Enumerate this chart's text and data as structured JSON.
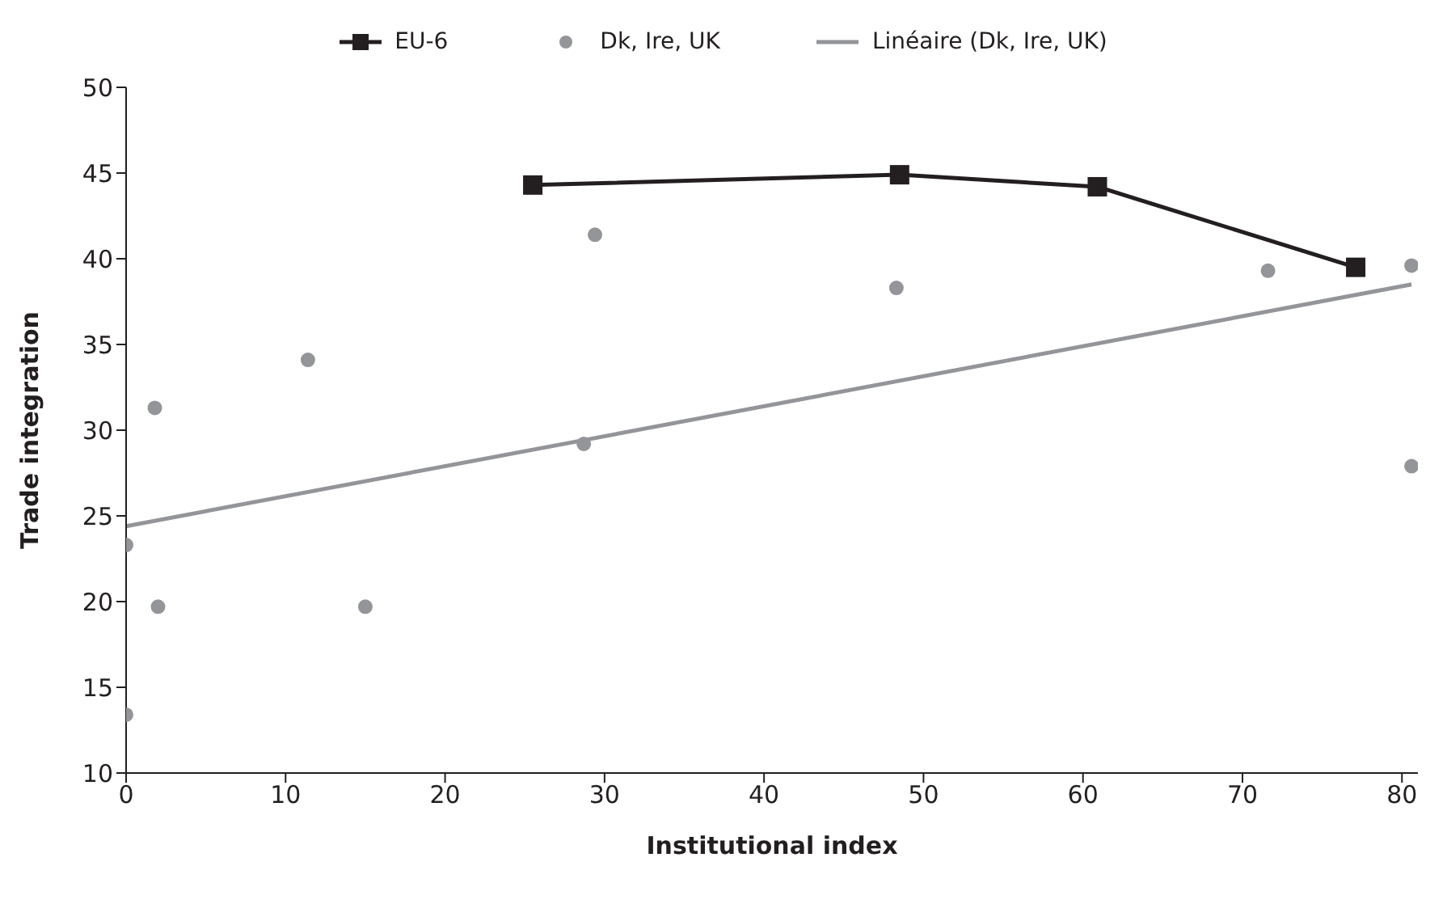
{
  "chart_data": {
    "type": "scatter",
    "xlabel": "Institutional index",
    "ylabel": "Trade integration",
    "xlim": [
      0,
      81
    ],
    "xticks": [
      0,
      10,
      20,
      30,
      40,
      50,
      60,
      70,
      80
    ],
    "ylim": [
      10,
      50
    ],
    "yticks": [
      10,
      15,
      20,
      25,
      30,
      35,
      40,
      45,
      50
    ],
    "grid": false,
    "legend": "top",
    "series": [
      {
        "name": "EU-6",
        "type": "line",
        "color": "#231f20",
        "marker": "square",
        "line_style": "solid",
        "x": [
          25.5,
          48.5,
          60.9,
          77.1
        ],
        "values": [
          44.3,
          44.9,
          44.2,
          39.5
        ]
      },
      {
        "name": "Dk, Ire, UK",
        "color": "#939598",
        "marker": "circle",
        "x": [
          0,
          0,
          1.8,
          2.0,
          11.4,
          15.0,
          28.7,
          29.4,
          48.3,
          71.6,
          80.6,
          80.6
        ],
        "values": [
          23.3,
          13.4,
          31.3,
          19.7,
          34.1,
          19.7,
          29.2,
          41.4,
          38.3,
          39.3,
          39.6,
          27.9
        ]
      },
      {
        "name": "Linéaire (Dk, Ire, UK)",
        "type": "line",
        "color": "#939598",
        "marker": "none",
        "line_style": "solid",
        "x": [
          0,
          80.6
        ],
        "values": [
          24.4,
          38.5
        ]
      }
    ]
  }
}
